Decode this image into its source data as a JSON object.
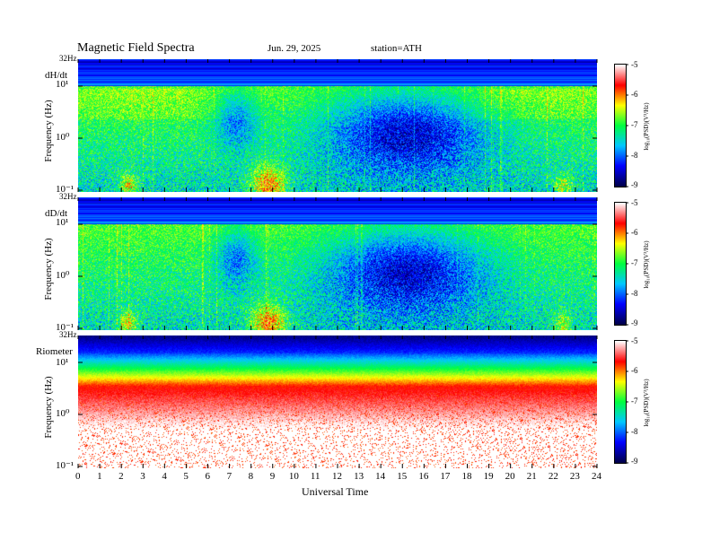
{
  "header": {
    "title": "Magnetic  Field  Spectra",
    "date": "Jun. 29, 2025",
    "station": "station=ATH"
  },
  "chart_data": [
    {
      "type": "heatmap",
      "panel_label": "dH/dt",
      "ylabel": "Frequency  (Hz)",
      "top_label": "32Hz",
      "yticks": [
        "10¹",
        "10⁰",
        "10⁻¹"
      ],
      "colorbar": {
        "label": "log₁₀(PSD)(V²/Hz)",
        "ticks": [
          "-5",
          "-6",
          "-7",
          "-8",
          "-9"
        ],
        "range": [
          -9,
          -5
        ]
      },
      "xlim": [
        0,
        24
      ]
    },
    {
      "type": "heatmap",
      "panel_label": "dD/dt",
      "ylabel": "Frequency  (Hz)",
      "top_label": "32Hz",
      "yticks": [
        "10¹",
        "10⁰",
        "10⁻¹"
      ],
      "colorbar": {
        "label": "log₁₀(PSD)(V²/Hz)",
        "ticks": [
          "-5",
          "-6",
          "-7",
          "-8",
          "-9"
        ],
        "range": [
          -9,
          -5
        ]
      },
      "xlim": [
        0,
        24
      ]
    },
    {
      "type": "heatmap",
      "panel_label": "Riometer",
      "ylabel": "Frequency  (Hz)",
      "top_label": "32Hz",
      "yticks": [
        "10¹",
        "10⁰",
        "10⁻¹"
      ],
      "colorbar": {
        "label": "log₁₀(PSD)(V²/Hz)",
        "ticks": [
          "-5",
          "-6",
          "-7",
          "-8",
          "-9"
        ],
        "range": [
          -9,
          -5
        ]
      },
      "xlim": [
        0,
        24
      ]
    }
  ],
  "xaxis": {
    "label": "Universal Time",
    "ticks": [
      "0",
      "1",
      "2",
      "3",
      "4",
      "5",
      "6",
      "7",
      "8",
      "9",
      "10",
      "11",
      "12",
      "13",
      "14",
      "15",
      "16",
      "17",
      "18",
      "19",
      "20",
      "21",
      "22",
      "23",
      "24"
    ]
  },
  "colors": {
    "scale": [
      "#00004a",
      "#0000ff",
      "#00c8ff",
      "#00ff40",
      "#ffff00",
      "#ff0000",
      "#ffffff"
    ]
  }
}
